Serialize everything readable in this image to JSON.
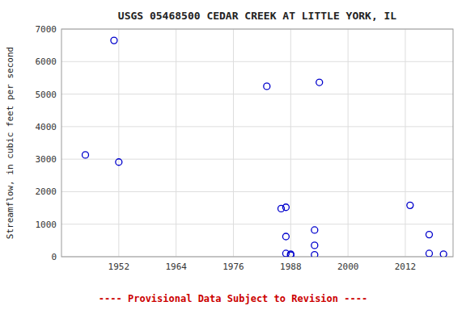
{
  "chart_data": {
    "type": "scatter",
    "title": "USGS 05468500 CEDAR CREEK AT LITTLE YORK, IL",
    "y_label": "Streamflow, in cubic feet per second",
    "annotations": [
      {
        "text": "---- Provisional Data Subject to Revision ----",
        "color": "#cc0000"
      }
    ],
    "x": [
      1945,
      1951,
      1952,
      1983,
      1986,
      1987,
      1987,
      1987,
      1988,
      1988,
      1993,
      1993,
      1993,
      1994,
      2013,
      2017,
      2017,
      2020
    ],
    "values": [
      3130,
      6650,
      2910,
      5240,
      1480,
      1520,
      620,
      100,
      80,
      50,
      820,
      350,
      60,
      5360,
      1580,
      680,
      100,
      80
    ],
    "color": "#0000cc",
    "marker": "circle",
    "xlim": [
      1940,
      2022
    ],
    "ylim": [
      0,
      7000
    ],
    "xticks": [
      1952,
      1964,
      1976,
      1988,
      2000,
      2012
    ],
    "yticks": [
      0,
      1000,
      2000,
      3000,
      4000,
      5000,
      6000,
      7000
    ],
    "grid": true
  }
}
